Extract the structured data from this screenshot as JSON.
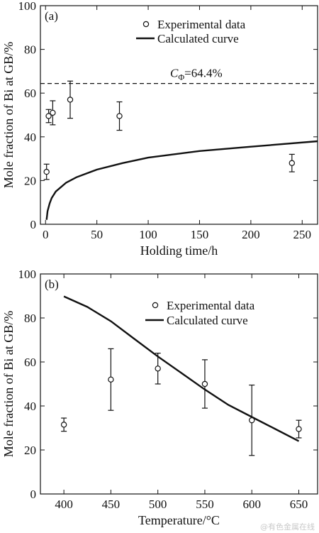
{
  "watermark": "@有色金属在线",
  "chart_data": [
    {
      "type": "scatter",
      "panel_label": "(a)",
      "xlabel": "Holding time/h",
      "ylabel": "Mole fraction of Bi at GB/%",
      "xlim": [
        -5,
        265
      ],
      "ylim": [
        0,
        100
      ],
      "xticks": [
        0,
        50,
        100,
        150,
        200,
        250
      ],
      "yticks": [
        0,
        20,
        40,
        60,
        80,
        100
      ],
      "legend_position": "top-center",
      "legend": {
        "scatter": "Experimental data",
        "curve": "Calculated curve"
      },
      "reference_line": {
        "y": 64.4,
        "label_symbol": "C",
        "label_sub": "Φ",
        "label_value": "=64.4%"
      },
      "series": [
        {
          "name": "Experimental data",
          "x": [
            1,
            3,
            7,
            24,
            72,
            240
          ],
          "y": [
            24,
            49.5,
            51,
            57,
            49.5,
            28
          ],
          "err": [
            3.5,
            3,
            5.5,
            8.5,
            6.5,
            4
          ]
        },
        {
          "name": "Calculated curve",
          "x": [
            1,
            2,
            4,
            6,
            10,
            20,
            30,
            50,
            75,
            100,
            150,
            200,
            265
          ],
          "y": [
            2,
            6,
            9.5,
            12,
            15,
            19,
            21.5,
            25,
            28,
            30.5,
            33.5,
            35.5,
            38
          ]
        }
      ]
    },
    {
      "type": "scatter",
      "panel_label": "(b)",
      "xlabel": "Temperature/°C",
      "ylabel": "Mole fraction of Bi at GB/%",
      "xlim": [
        375,
        670
      ],
      "ylim": [
        0,
        100
      ],
      "xticks": [
        400,
        450,
        500,
        550,
        600,
        650
      ],
      "yticks": [
        0,
        20,
        40,
        60,
        80,
        100
      ],
      "legend_position": "top-right",
      "legend": {
        "scatter": "Experimental data",
        "curve": "Calculated curve"
      },
      "series": [
        {
          "name": "Experimental data",
          "x": [
            400,
            450,
            500,
            550,
            600,
            650
          ],
          "y": [
            31.5,
            52,
            57,
            50,
            33.5,
            29.5
          ],
          "err": [
            3,
            14,
            7,
            11,
            16,
            4
          ]
        },
        {
          "name": "Calculated curve",
          "x": [
            400,
            425,
            450,
            475,
            500,
            525,
            550,
            575,
            600,
            625,
            650
          ],
          "y": [
            89.8,
            85,
            78.5,
            70.5,
            62.5,
            55,
            47.5,
            40.5,
            35,
            29.5,
            24
          ]
        }
      ]
    }
  ]
}
